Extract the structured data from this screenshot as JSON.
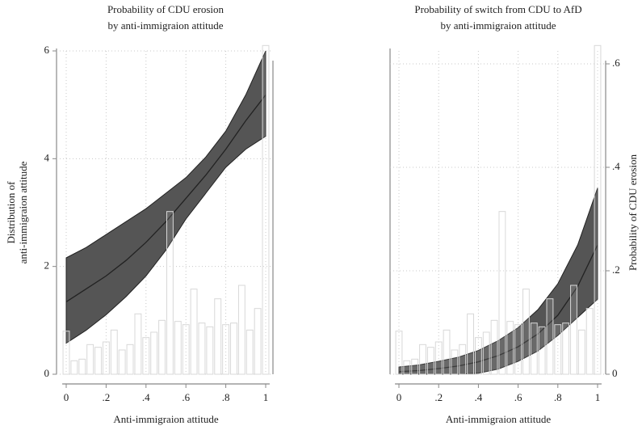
{
  "chart_data": [
    {
      "type": "line",
      "title": "Probability of CDU erosion",
      "subtitle": "by anti-immigraion attitude",
      "x_label": "Anti-immigraion attitude",
      "y_label": [
        "Distribution of",
        "anti-immigraion attitude"
      ],
      "xlim": [
        -0.02,
        1.02
      ],
      "xticks": [
        0,
        {
          "value": 0.2,
          "label": ".2"
        },
        {
          "value": 0.4,
          "label": ".4"
        },
        {
          "value": 0.6,
          "label": ".6"
        },
        {
          "value": 0.8,
          "label": ".8"
        },
        1
      ],
      "ylim": [
        0,
        6
      ],
      "yticks": [
        0,
        2,
        4,
        6
      ],
      "y2lim": [
        0,
        0.625
      ],
      "grid": true,
      "histogram": {
        "bins": [
          -0.02,
          0.02,
          0.06,
          0.1,
          0.14,
          0.18,
          0.22,
          0.26,
          0.3,
          0.34,
          0.38,
          0.42,
          0.46,
          0.5,
          0.54,
          0.58,
          0.62,
          0.66,
          0.7,
          0.74,
          0.78,
          0.82,
          0.86,
          0.9,
          0.94,
          0.98,
          1.02
        ],
        "values": [
          0.8,
          0.25,
          0.28,
          0.55,
          0.5,
          0.6,
          0.82,
          0.45,
          0.55,
          1.12,
          0.68,
          0.78,
          1.0,
          3.02,
          0.98,
          0.92,
          1.58,
          0.95,
          0.88,
          1.4,
          0.92,
          0.95,
          1.65,
          0.82,
          1.22,
          6.1
        ],
        "color": "#d8d8d8"
      },
      "x": [
        0,
        0.1,
        0.2,
        0.3,
        0.4,
        0.5,
        0.6,
        0.7,
        0.8,
        0.9,
        1
      ],
      "series": [
        {
          "axis": "y2",
          "color": "#222222",
          "band_color": "#555555",
          "values": [
            0.14,
            0.165,
            0.19,
            0.22,
            0.255,
            0.295,
            0.34,
            0.385,
            0.435,
            0.49,
            0.54
          ],
          "lower": [
            0.06,
            0.085,
            0.115,
            0.15,
            0.19,
            0.24,
            0.3,
            0.35,
            0.4,
            0.435,
            0.46
          ],
          "upper": [
            0.225,
            0.245,
            0.27,
            0.295,
            0.32,
            0.35,
            0.38,
            0.42,
            0.47,
            0.54,
            0.625
          ]
        }
      ]
    },
    {
      "type": "line",
      "title": "Probability of switch from CDU to AfD",
      "subtitle": "by anti-immigraion attitude",
      "x_label": "Anti-immigraion attitude",
      "y2_label": "Probability of CDU erosion",
      "xlim": [
        -0.02,
        1.02
      ],
      "xticks": [
        0,
        {
          "value": 0.2,
          "label": ".2"
        },
        {
          "value": 0.4,
          "label": ".4"
        },
        {
          "value": 0.6,
          "label": ".6"
        },
        {
          "value": 0.8,
          "label": ".8"
        },
        1
      ],
      "ylim": [
        0,
        6
      ],
      "y2lim": [
        0,
        0.625
      ],
      "y2ticks": [
        0,
        {
          "value": 0.2,
          "label": ".2"
        },
        {
          "value": 0.4,
          "label": ".4"
        },
        {
          "value": 0.6,
          "label": ".6"
        }
      ],
      "grid": true,
      "histogram": {
        "bins": [
          -0.02,
          0.02,
          0.06,
          0.1,
          0.14,
          0.18,
          0.22,
          0.26,
          0.3,
          0.34,
          0.38,
          0.42,
          0.46,
          0.5,
          0.54,
          0.58,
          0.62,
          0.66,
          0.7,
          0.74,
          0.78,
          0.82,
          0.86,
          0.9,
          0.94,
          0.98,
          1.02
        ],
        "values": [
          0.8,
          0.25,
          0.28,
          0.55,
          0.5,
          0.6,
          0.82,
          0.45,
          0.55,
          1.12,
          0.68,
          0.78,
          1.0,
          3.02,
          0.98,
          0.92,
          1.58,
          0.95,
          0.88,
          1.4,
          0.92,
          0.95,
          1.65,
          0.82,
          1.22,
          6.1
        ],
        "color": "#d8d8d8"
      },
      "x": [
        0,
        0.1,
        0.2,
        0.3,
        0.4,
        0.5,
        0.6,
        0.7,
        0.8,
        0.9,
        1
      ],
      "series": [
        {
          "axis": "y2",
          "color": "#222222",
          "band_color": "#555555",
          "values": [
            0.005,
            0.007,
            0.011,
            0.016,
            0.024,
            0.036,
            0.053,
            0.078,
            0.114,
            0.17,
            0.25
          ],
          "lower": [
            0,
            0,
            0,
            0,
            0.002,
            0.01,
            0.025,
            0.045,
            0.075,
            0.11,
            0.145
          ],
          "upper": [
            0.014,
            0.018,
            0.025,
            0.033,
            0.046,
            0.065,
            0.09,
            0.125,
            0.175,
            0.25,
            0.36
          ]
        }
      ]
    }
  ]
}
